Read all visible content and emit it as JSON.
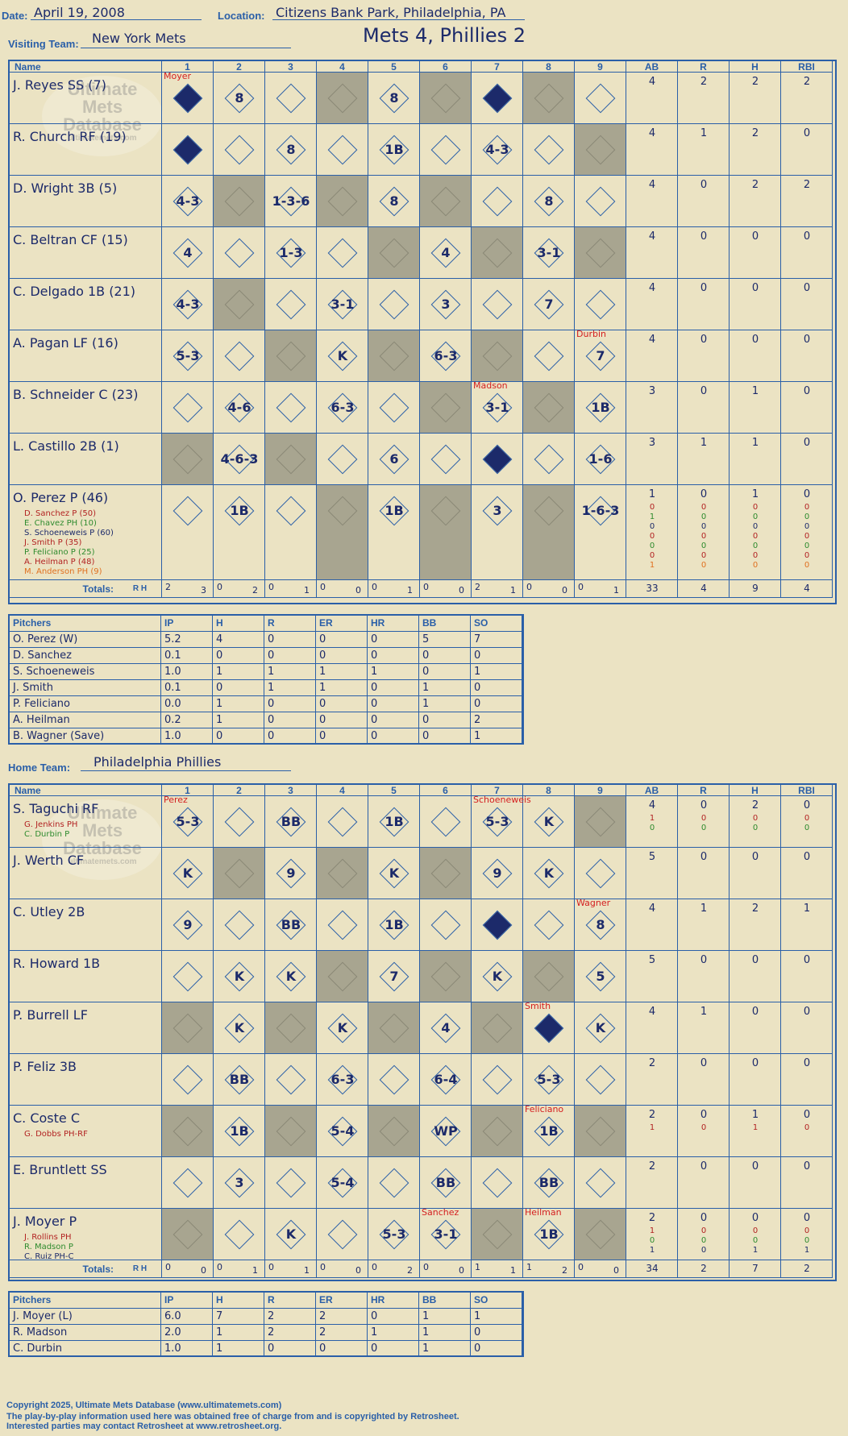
{
  "header": {
    "date_label": "Date:",
    "date": "April 19, 2008",
    "location_label": "Location:",
    "location": "Citizens Bank Park, Philadelphia, PA",
    "visiting_label": "Visiting Team:",
    "visiting_team": "New York Mets",
    "game_title": "Mets 4, Phillies 2"
  },
  "columns": {
    "name": "Name",
    "innings": [
      "1",
      "2",
      "3",
      "4",
      "5",
      "6",
      "7",
      "8",
      "9"
    ],
    "stats": [
      "AB",
      "R",
      "H",
      "RBI"
    ]
  },
  "watermark": {
    "line1": "Ultimate",
    "line2": "Mets",
    "line3": "Database",
    "url": "ultimatemets.com"
  },
  "visitors": {
    "batters": [
      {
        "name": "J. Reyes SS (7)",
        "stats": [
          "4",
          "2",
          "2",
          "2"
        ],
        "subs": []
      },
      {
        "name": "R. Church RF (19)",
        "stats": [
          "4",
          "1",
          "2",
          "0"
        ],
        "subs": []
      },
      {
        "name": "D. Wright 3B (5)",
        "stats": [
          "4",
          "0",
          "2",
          "2"
        ],
        "subs": []
      },
      {
        "name": "C. Beltran CF (15)",
        "stats": [
          "4",
          "0",
          "0",
          "0"
        ],
        "subs": []
      },
      {
        "name": "C. Delgado 1B (21)",
        "stats": [
          "4",
          "0",
          "0",
          "0"
        ],
        "subs": []
      },
      {
        "name": "A. Pagan LF (16)",
        "stats": [
          "4",
          "0",
          "0",
          "0"
        ],
        "subs": []
      },
      {
        "name": "B. Schneider C (23)",
        "stats": [
          "3",
          "0",
          "1",
          "0"
        ],
        "subs": []
      },
      {
        "name": "L. Castillo 2B (1)",
        "stats": [
          "3",
          "1",
          "1",
          "0"
        ],
        "subs": []
      },
      {
        "name": "O. Perez P (46)",
        "stats": [
          "1",
          "0",
          "1",
          "0"
        ],
        "subs": [
          {
            "name": "D. Sanchez P (50)",
            "color": "#b22222",
            "stats": [
              "0",
              "0",
              "0",
              "0"
            ]
          },
          {
            "name": "E. Chavez PH (10)",
            "color": "#2e8b2e",
            "stats": [
              "1",
              "0",
              "0",
              "0"
            ]
          },
          {
            "name": "S. Schoeneweis P (60)",
            "color": "#1c2a6a",
            "stats": [
              "0",
              "0",
              "0",
              "0"
            ]
          },
          {
            "name": "J. Smith P (35)",
            "color": "#b22222",
            "stats": [
              "0",
              "0",
              "0",
              "0"
            ]
          },
          {
            "name": "P. Feliciano P (25)",
            "color": "#2e8b2e",
            "stats": [
              "0",
              "0",
              "0",
              "0"
            ]
          },
          {
            "name": "A. Heilman P (48)",
            "color": "#b22222",
            "stats": [
              "0",
              "0",
              "0",
              "0"
            ]
          },
          {
            "name": "M. Anderson PH (9)",
            "color": "#e07020",
            "stats": [
              "1",
              "0",
              "0",
              "0"
            ]
          }
        ]
      }
    ],
    "plays": [
      [
        "◆",
        "8",
        "",
        "",
        "8",
        "",
        "◆",
        "",
        ""
      ],
      [
        "◆",
        "",
        "8",
        "",
        "1B",
        "",
        "4-3",
        "",
        ""
      ],
      [
        "4-3",
        "",
        "1-3-6",
        "",
        "8",
        "",
        "",
        "8",
        ""
      ],
      [
        "4",
        "",
        "1-3",
        "",
        "",
        "4",
        "",
        "3-1",
        ""
      ],
      [
        "4-3",
        "",
        "",
        "3-1",
        "",
        "3",
        "",
        "7",
        ""
      ],
      [
        "5-3",
        "",
        "",
        "K",
        "",
        "6-3",
        "",
        "",
        "7"
      ],
      [
        "",
        "4-6",
        "",
        "6-3",
        "",
        "",
        "3-1",
        "",
        "1B"
      ],
      [
        "",
        "4-6-3",
        "",
        "",
        "6",
        "",
        "◆",
        "",
        "1-6"
      ],
      [
        "",
        "1B",
        "",
        "",
        "1B",
        "",
        "3",
        "",
        "1-6-3"
      ]
    ],
    "notes": [
      {
        "text": "Moyer",
        "row": 0,
        "col": 0,
        "color": "#d42020"
      },
      {
        "text": "Durbin",
        "row": 5,
        "col": 8,
        "color": "#d42020"
      },
      {
        "text": "Madson",
        "row": 6,
        "col": 6,
        "color": "#d42020"
      }
    ],
    "totals_label": "Totals:",
    "totals_rh": [
      [
        "2",
        "3"
      ],
      [
        "0",
        "2"
      ],
      [
        "0",
        "1"
      ],
      [
        "0",
        "0"
      ],
      [
        "0",
        "1"
      ],
      [
        "0",
        "0"
      ],
      [
        "2",
        "1"
      ],
      [
        "0",
        "0"
      ],
      [
        "0",
        "1"
      ]
    ],
    "totals_stats": [
      "33",
      "4",
      "9",
      "4"
    ]
  },
  "visitor_pitchers": {
    "headers": [
      "Pitchers",
      "IP",
      "H",
      "R",
      "ER",
      "HR",
      "BB",
      "SO"
    ],
    "rows": [
      [
        "O. Perez (W)",
        "5.2",
        "4",
        "0",
        "0",
        "0",
        "5",
        "7"
      ],
      [
        "D. Sanchez",
        "0.1",
        "0",
        "0",
        "0",
        "0",
        "0",
        "0"
      ],
      [
        "S. Schoeneweis",
        "1.0",
        "1",
        "1",
        "1",
        "1",
        "0",
        "1"
      ],
      [
        "J. Smith",
        "0.1",
        "0",
        "1",
        "1",
        "0",
        "1",
        "0"
      ],
      [
        "P. Feliciano",
        "0.0",
        "1",
        "0",
        "0",
        "0",
        "1",
        "0"
      ],
      [
        "A. Heilman",
        "0.2",
        "1",
        "0",
        "0",
        "0",
        "0",
        "2"
      ],
      [
        "B. Wagner (Save)",
        "1.0",
        "0",
        "0",
        "0",
        "0",
        "0",
        "1"
      ]
    ]
  },
  "home_label": "Home Team:",
  "home_team": "Philadelphia Phillies",
  "home": {
    "batters": [
      {
        "name": "S. Taguchi RF",
        "stats": [
          "4",
          "0",
          "2",
          "0"
        ],
        "subs": [
          {
            "name": "G. Jenkins PH",
            "color": "#b22222",
            "stats": [
              "1",
              "0",
              "0",
              "0"
            ]
          },
          {
            "name": "C. Durbin P",
            "color": "#2e8b2e",
            "stats": [
              "0",
              "0",
              "0",
              "0"
            ]
          }
        ]
      },
      {
        "name": "J. Werth CF",
        "stats": [
          "5",
          "0",
          "0",
          "0"
        ],
        "subs": []
      },
      {
        "name": "C. Utley 2B",
        "stats": [
          "4",
          "1",
          "2",
          "1"
        ],
        "subs": []
      },
      {
        "name": "R. Howard 1B",
        "stats": [
          "5",
          "0",
          "0",
          "0"
        ],
        "subs": []
      },
      {
        "name": "P. Burrell LF",
        "stats": [
          "4",
          "1",
          "0",
          "0"
        ],
        "subs": []
      },
      {
        "name": "P. Feliz 3B",
        "stats": [
          "2",
          "0",
          "0",
          "0"
        ],
        "subs": []
      },
      {
        "name": "C. Coste C",
        "stats": [
          "2",
          "0",
          "1",
          "0"
        ],
        "subs": [
          {
            "name": "G. Dobbs PH-RF",
            "color": "#b22222",
            "stats": [
              "1",
              "0",
              "1",
              "0"
            ]
          }
        ]
      },
      {
        "name": "E. Bruntlett SS",
        "stats": [
          "2",
          "0",
          "0",
          "0"
        ],
        "subs": []
      },
      {
        "name": "J. Moyer P",
        "stats": [
          "2",
          "0",
          "0",
          "0"
        ],
        "subs": [
          {
            "name": "J. Rollins PH",
            "color": "#b22222",
            "stats": [
              "1",
              "0",
              "0",
              "0"
            ]
          },
          {
            "name": "R. Madson P",
            "color": "#2e8b2e",
            "stats": [
              "0",
              "0",
              "0",
              "0"
            ]
          },
          {
            "name": "C. Ruiz PH-C",
            "color": "#1c2a6a",
            "stats": [
              "1",
              "0",
              "1",
              "1"
            ]
          }
        ]
      }
    ],
    "plays": [
      [
        "5-3",
        "",
        "BB",
        "",
        "1B",
        "",
        "5-3",
        "K",
        ""
      ],
      [
        "K",
        "",
        "9",
        "",
        "K",
        "",
        "9",
        "K",
        ""
      ],
      [
        "9",
        "",
        "BB",
        "",
        "1B",
        "",
        "◆",
        "",
        "8"
      ],
      [
        "",
        "K",
        "K",
        "",
        "7",
        "",
        "K",
        "",
        "5"
      ],
      [
        "",
        "K",
        "",
        "K",
        "",
        "4",
        "",
        "◆",
        "K"
      ],
      [
        "",
        "BB",
        "",
        "6-3",
        "",
        "6-4",
        "",
        "5-3",
        ""
      ],
      [
        "",
        "1B",
        "",
        "5-4",
        "",
        "WP",
        "",
        "1B",
        ""
      ],
      [
        "",
        "3",
        "",
        "5-4",
        "",
        "BB",
        "",
        "BB",
        ""
      ],
      [
        "",
        "",
        "K",
        "",
        "5-3",
        "3-1",
        "",
        "1B",
        ""
      ]
    ],
    "notes": [
      {
        "text": "Perez",
        "row": 0,
        "col": 0,
        "color": "#d42020"
      },
      {
        "text": "Schoeneweis",
        "row": 0,
        "col": 6,
        "color": "#d42020"
      },
      {
        "text": "Wagner",
        "row": 2,
        "col": 8,
        "color": "#d42020"
      },
      {
        "text": "Smith",
        "row": 4,
        "col": 7,
        "color": "#d42020"
      },
      {
        "text": "Feliciano",
        "row": 6,
        "col": 7,
        "color": "#d42020"
      },
      {
        "text": "Sanchez",
        "row": 8,
        "col": 5,
        "color": "#d42020"
      },
      {
        "text": "Heilman",
        "row": 8,
        "col": 7,
        "color": "#d42020"
      }
    ],
    "totals_label": "Totals:",
    "totals_rh": [
      [
        "0",
        "0"
      ],
      [
        "0",
        "1"
      ],
      [
        "0",
        "1"
      ],
      [
        "0",
        "0"
      ],
      [
        "0",
        "2"
      ],
      [
        "0",
        "0"
      ],
      [
        "1",
        "1"
      ],
      [
        "1",
        "2"
      ],
      [
        "0",
        "0"
      ]
    ],
    "totals_stats": [
      "34",
      "2",
      "7",
      "2"
    ]
  },
  "home_pitchers": {
    "headers": [
      "Pitchers",
      "IP",
      "H",
      "R",
      "ER",
      "HR",
      "BB",
      "SO"
    ],
    "rows": [
      [
        "J. Moyer (L)",
        "6.0",
        "7",
        "2",
        "2",
        "0",
        "1",
        "1"
      ],
      [
        "R. Madson",
        "2.0",
        "1",
        "2",
        "2",
        "1",
        "1",
        "0"
      ],
      [
        "C. Durbin",
        "1.0",
        "1",
        "0",
        "0",
        "0",
        "1",
        "0"
      ]
    ]
  },
  "footer": {
    "line1": "Copyright 2025, Ultimate Mets Database (www.ultimatemets.com)",
    "line2": "The play-by-play information used here was obtained free of charge from and is copyrighted by Retrosheet.",
    "line3": "Interested parties may contact Retrosheet at www.retrosheet.org."
  }
}
